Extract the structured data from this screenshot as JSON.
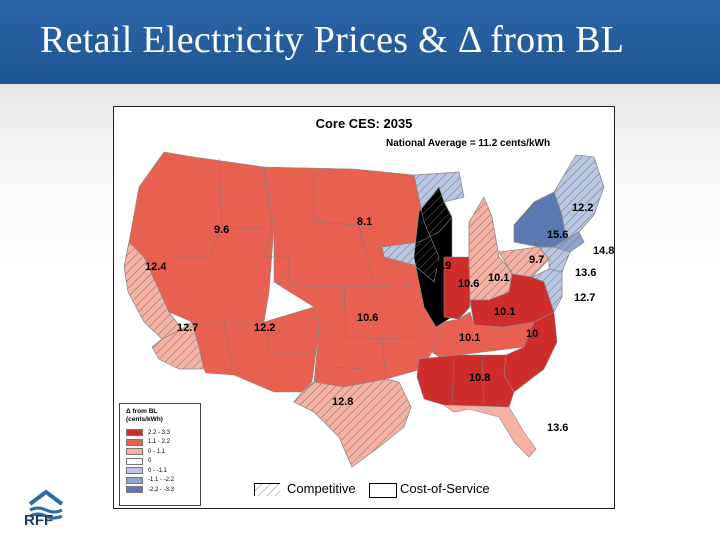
{
  "slide": {
    "title": "Retail Electricity Prices & Δ from BL"
  },
  "map": {
    "title": "Core CES: 2035",
    "subtitle": "National Average = 11.2 cents/kWh",
    "colors": {
      "dark_red": "#cf2d2c",
      "mid_red": "#e8604f",
      "light_red": "#f6b1a4",
      "white": "#ffffff",
      "light_blue": "#b8c6e1",
      "mid_blue": "#8fa4ce",
      "dark_blue": "#5a7bb8"
    },
    "regions": [
      {
        "name": "Northwest",
        "value": "9.6",
        "color_class": "mid_red",
        "market": "Cost-of-Service"
      },
      {
        "name": "North Central",
        "value": "8.1",
        "color_class": "mid_red",
        "market": "Cost-of-Service"
      },
      {
        "name": "California North",
        "value": "12.4",
        "color_class": "light_red",
        "market": "Competitive"
      },
      {
        "name": "California South",
        "value": "12.7",
        "color_class": "light_red",
        "market": "Competitive"
      },
      {
        "name": "Southwest",
        "value": "12.2",
        "color_class": "mid_red",
        "market": "Cost-of-Service"
      },
      {
        "name": "Central Plains",
        "value": "10.6",
        "color_class": "mid_red",
        "market": "Cost-of-Service"
      },
      {
        "name": "Texas",
        "value": "12.8",
        "color_class": "light_red",
        "market": "Competitive"
      },
      {
        "name": "Midwest",
        "value": "8.9",
        "color_class": "light_blue",
        "market": "Competitive"
      },
      {
        "name": "Indiana",
        "value": "10.6",
        "color_class": "dark_red",
        "market": "Cost-of-Service"
      },
      {
        "name": "Ohio",
        "value": "10.1",
        "color_class": "light_red",
        "market": "Competitive"
      },
      {
        "name": "Kentucky / Tennessee",
        "value": "10.1",
        "color_class": "mid_red",
        "market": "Cost-of-Service"
      },
      {
        "name": "Virginia / West Virginia",
        "value": "10.1",
        "color_class": "dark_red",
        "market": "Cost-of-Service"
      },
      {
        "name": "Carolinas",
        "value": "10",
        "color_class": "dark_red",
        "market": "Cost-of-Service"
      },
      {
        "name": "Southeast",
        "value": "10.8",
        "color_class": "dark_red",
        "market": "Cost-of-Service"
      },
      {
        "name": "Florida",
        "value": "13.6",
        "color_class": "light_red",
        "market": "Cost-of-Service"
      },
      {
        "name": "Pennsylvania",
        "value": "9.7",
        "color_class": "light_red",
        "market": "Competitive"
      },
      {
        "name": "New York Upstate",
        "value": "15.6",
        "color_class": "dark_blue",
        "market": "Competitive"
      },
      {
        "name": "New England",
        "value": "12.2",
        "color_class": "light_blue",
        "market": "Competitive"
      },
      {
        "name": "New York City / Long Island",
        "value": "14.8",
        "color_class": "mid_blue",
        "market": "Competitive"
      },
      {
        "name": "New Jersey",
        "value": "13.6",
        "color_class": "light_blue",
        "market": "Competitive"
      },
      {
        "name": "Maryland / Delaware",
        "value": "12.7",
        "color_class": "light_blue",
        "market": "Competitive"
      }
    ],
    "legend": {
      "title_line1": "Δ from BL",
      "title_line2": "(cents/kWh)",
      "items": [
        {
          "label": "2.2 - 3.3",
          "color_class": "dark_red"
        },
        {
          "label": "1.1 - 2.2",
          "color_class": "mid_red"
        },
        {
          "label": "0 - 1.1",
          "color_class": "light_red"
        },
        {
          "label": "0",
          "color_class": "white"
        },
        {
          "label": "0 - -1.1",
          "color_class": "light_blue"
        },
        {
          "label": "-1.1 - -2.2",
          "color_class": "mid_blue"
        },
        {
          "label": "-2.2 - -3.3",
          "color_class": "dark_blue"
        }
      ]
    },
    "market_key": {
      "competitive": "Competitive",
      "cost_of_service": "Cost-of-Service"
    }
  },
  "logo": {
    "text": "RFF"
  }
}
